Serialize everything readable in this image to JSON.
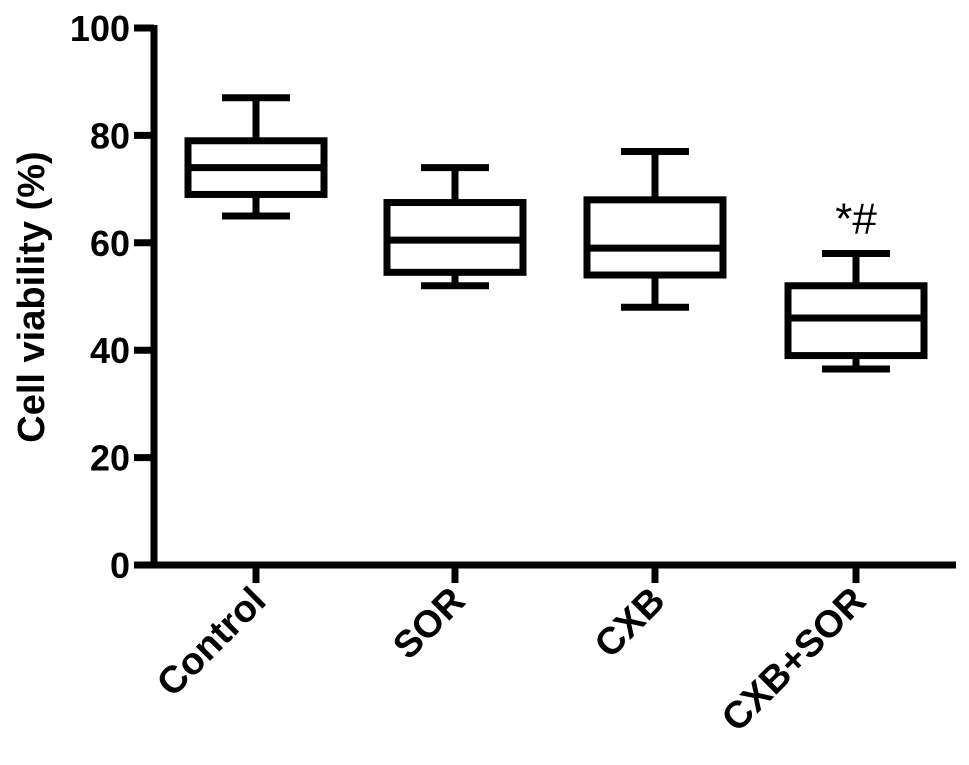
{
  "chart_data": {
    "type": "box",
    "title": "",
    "xlabel": "",
    "ylabel": "Cell viability (%)",
    "ylim": [
      0,
      100
    ],
    "yticks": [
      0,
      20,
      40,
      60,
      80,
      100
    ],
    "ytick_labels": [
      "0",
      "20",
      "40",
      "60",
      "80",
      "100"
    ],
    "grid": false,
    "categories": [
      "Control",
      "SOR",
      "CXB",
      "CXB+SOR"
    ],
    "boxes": [
      {
        "category": "Control",
        "min": 65,
        "q1": 69,
        "median": 74,
        "q3": 79,
        "max": 87,
        "annotation": ""
      },
      {
        "category": "SOR",
        "min": 52,
        "q1": 54.5,
        "median": 60.5,
        "q3": 67.5,
        "max": 74,
        "annotation": ""
      },
      {
        "category": "CXB",
        "min": 48,
        "q1": 54,
        "median": 59,
        "q3": 68,
        "max": 77,
        "annotation": ""
      },
      {
        "category": "CXB+SOR",
        "min": 36.5,
        "q1": 39,
        "median": 46,
        "q3": 52,
        "max": 58,
        "annotation": "*#"
      }
    ]
  }
}
